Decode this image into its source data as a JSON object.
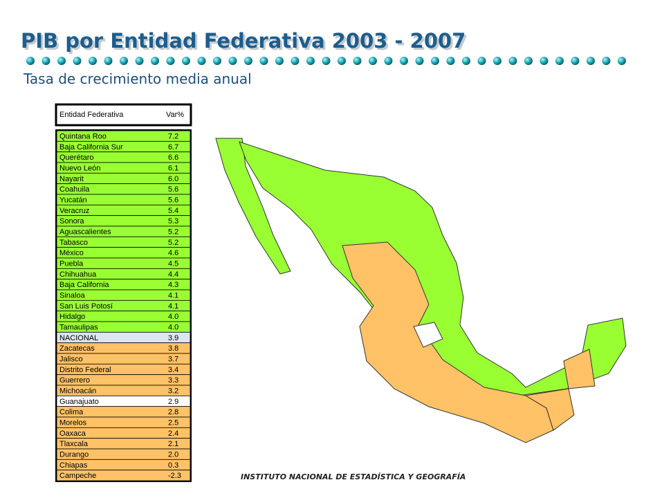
{
  "header": {
    "title": "PIB por Entidad Federativa 2003 - 2007",
    "subtitle": "Tasa de crecimiento media anual"
  },
  "table": {
    "columns": [
      "Entidad Federativa",
      "Var%"
    ],
    "rows": [
      [
        "Quintana Roo",
        "7.2"
      ],
      [
        "Baja California Sur",
        "6.7"
      ],
      [
        "Querétaro",
        "6.6"
      ],
      [
        "Nuevo León",
        "6.1"
      ],
      [
        "Nayarit",
        "6.0"
      ],
      [
        "Coahuila",
        "5.6"
      ],
      [
        "Yucatán",
        "5.6"
      ],
      [
        "Veracruz",
        "5.4"
      ],
      [
        "Sonora",
        "5.3"
      ],
      [
        "Aguascalientes",
        "5.2"
      ],
      [
        "Tabasco",
        "5.2"
      ],
      [
        "México",
        "4.6"
      ],
      [
        "Puebla",
        "4.5"
      ],
      [
        "Chihuahua",
        "4.4"
      ],
      [
        "Baja California",
        "4.3"
      ],
      [
        "Sinaloa",
        "4.1"
      ],
      [
        "San Luis Potosí",
        "4.1"
      ],
      [
        "Hidalgo",
        "4.0"
      ],
      [
        "Tamaulipas",
        "4.0"
      ],
      [
        "NACIONAL",
        "3.9"
      ],
      [
        "Zacatecas",
        "3.8"
      ],
      [
        "Jalisco",
        "3.7"
      ],
      [
        "Distrito Federal",
        "3.4"
      ],
      [
        "Guerrero",
        "3.3"
      ],
      [
        "Michoacán",
        "3.2"
      ],
      [
        "Guanajuato",
        "2.9"
      ],
      [
        "Colima",
        "2.8"
      ],
      [
        "Morelos",
        "2.5"
      ],
      [
        "Oaxaca",
        "2.4"
      ],
      [
        "Tlaxcala",
        "2.1"
      ],
      [
        "Durango",
        "2.0"
      ],
      [
        "Chiapas",
        "0.3"
      ],
      [
        "Campeche",
        "-2.3"
      ]
    ],
    "row_fills": [
      "#99ff33",
      "#99ff33",
      "#99ff33",
      "#99ff33",
      "#99ff33",
      "#99ff33",
      "#99ff33",
      "#99ff33",
      "#99ff33",
      "#99ff33",
      "#99ff33",
      "#99ff33",
      "#99ff33",
      "#99ff33",
      "#99ff33",
      "#99ff33",
      "#99ff33",
      "#99ff33",
      "#99ff33",
      "#dde4f4",
      "#ffc266",
      "#ffc266",
      "#ffc266",
      "#ffc266",
      "#ffc266",
      "#ffffff",
      "#ffc266",
      "#ffc266",
      "#ffc266",
      "#ffc266",
      "#ffc266",
      "#ffc266",
      "#ffc266"
    ]
  },
  "footer": "INSTITUTO NACIONAL DE ESTADÍSTICA Y GEOGRAFÍA"
}
